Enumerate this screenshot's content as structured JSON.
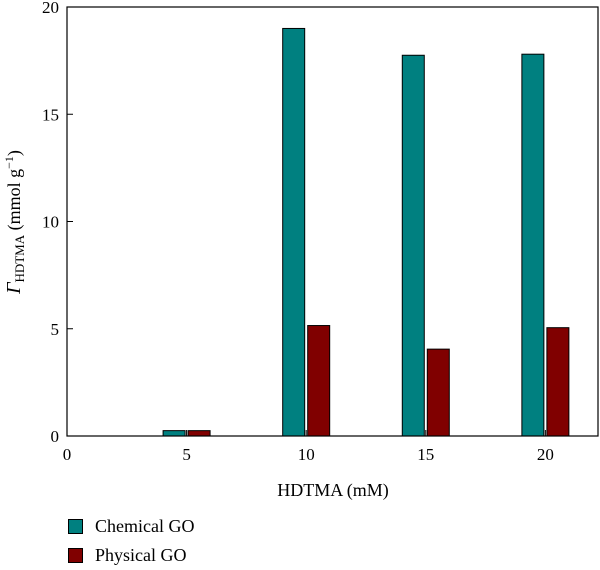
{
  "chart_data": {
    "type": "bar",
    "xlabel": "HDTMA (mM)",
    "ylabel": {
      "symbol": "Γ",
      "subscript": "HDTMA",
      "unit_prefix": " (mmol g",
      "unit_sup": "−1",
      "unit_suffix": ")"
    },
    "xlim": [
      0,
      22.2
    ],
    "ylim": [
      0,
      20
    ],
    "xticks": [
      0,
      5,
      10,
      15,
      20
    ],
    "yticks": [
      0,
      5,
      10,
      15,
      20
    ],
    "categories": [
      5,
      10,
      15,
      20
    ],
    "series": [
      {
        "name": "Chemical GO",
        "color": "#008080",
        "values": [
          0.25,
          19.0,
          17.75,
          17.8
        ]
      },
      {
        "name": "Physical GO",
        "color": "#800000",
        "values": [
          0.25,
          5.15,
          4.05,
          5.05
        ]
      }
    ],
    "legend_position": "bottom-left",
    "grid": false
  }
}
